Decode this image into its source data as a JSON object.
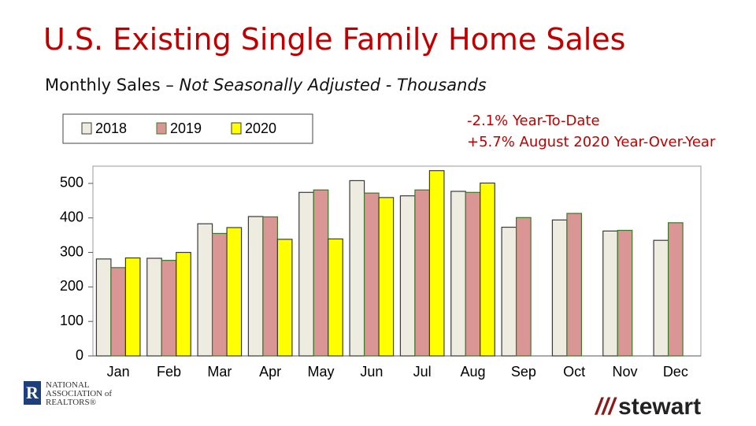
{
  "chart_data": {
    "type": "bar",
    "title": "U.S. Existing Single Family Home Sales",
    "subtitle": "Monthly Sales –",
    "subtitle_note": "Not Seasonally Adjusted - Thousands",
    "annotations": [
      "-2.1% Year-To-Date",
      "+5.7% August 2020 Year-Over-Year"
    ],
    "categories": [
      "Jan",
      "Feb",
      "Mar",
      "Apr",
      "May",
      "Jun",
      "Jul",
      "Aug",
      "Sep",
      "Oct",
      "Nov",
      "Dec"
    ],
    "series": [
      {
        "name": "2018",
        "color": "#eeece1",
        "edge": "#3a3a3a",
        "values": [
          281,
          283,
          383,
          404,
          474,
          508,
          464,
          477,
          373,
          394,
          362,
          335
        ]
      },
      {
        "name": "2019",
        "color": "#d99694",
        "edge": "#3a7a2a",
        "values": [
          256,
          277,
          355,
          403,
          481,
          472,
          481,
          474,
          401,
          413,
          364,
          386
        ]
      },
      {
        "name": "2020",
        "color": "#ffff00",
        "edge": "#3a3a3a",
        "values": [
          284,
          300,
          372,
          338,
          339,
          459,
          537,
          501,
          null,
          null,
          null,
          null
        ]
      }
    ],
    "ylim": [
      0,
      550
    ],
    "yticks": [
      0,
      100,
      200,
      300,
      400,
      500
    ],
    "grid": false
  },
  "logos": [
    "NATIONAL ASSOCIATION of REALTORS®",
    "stewart"
  ]
}
